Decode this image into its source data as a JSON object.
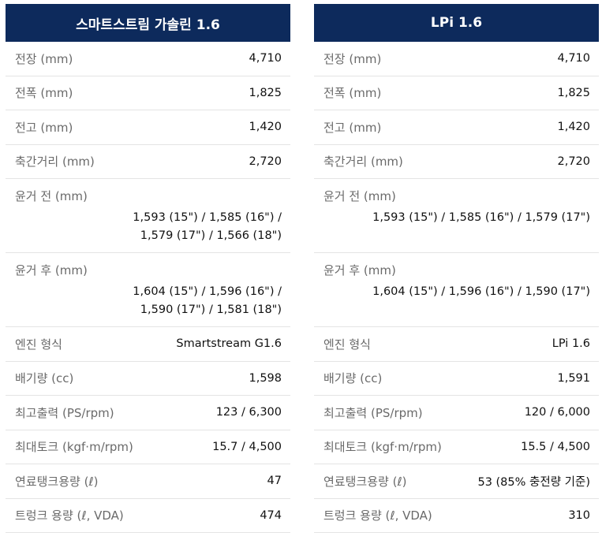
{
  "columns": [
    {
      "title": "스마트스트림 가솔린 1.6",
      "rows": [
        {
          "label": "전장 (mm)",
          "value": "4,710"
        },
        {
          "label": "전폭 (mm)",
          "value": "1,825"
        },
        {
          "label": "전고 (mm)",
          "value": "1,420"
        },
        {
          "label": "축간거리 (mm)",
          "value": "2,720"
        },
        {
          "label": "윤거 전 (mm)",
          "lines": [
            "1,593 (15\") / 1,585 (16\") /",
            "1,579 (17\") / 1,566 (18\")"
          ]
        },
        {
          "label": "윤거 후 (mm)",
          "lines": [
            "1,604 (15\") / 1,596 (16\") /",
            "1,590 (17\") / 1,581 (18\")"
          ]
        },
        {
          "label": "엔진 형식",
          "value": "Smartstream G1.6"
        },
        {
          "label": "배기량 (cc)",
          "value": "1,598"
        },
        {
          "label": "최고출력 (PS/rpm)",
          "value": "123 / 6,300"
        },
        {
          "label": "최대토크 (kgf·m/rpm)",
          "value": "15.7 / 4,500"
        },
        {
          "label": "연료탱크용량 (ℓ)",
          "value": "47"
        },
        {
          "label": "트렁크 용량 (ℓ, VDA)",
          "value": "474"
        }
      ]
    },
    {
      "title": "LPi 1.6",
      "rows": [
        {
          "label": "전장 (mm)",
          "value": "4,710"
        },
        {
          "label": "전폭 (mm)",
          "value": "1,825"
        },
        {
          "label": "전고 (mm)",
          "value": "1,420"
        },
        {
          "label": "축간거리 (mm)",
          "value": "2,720"
        },
        {
          "label": "윤거 전 (mm)",
          "lines": [
            "1,593 (15\") / 1,585 (16\") / 1,579 (17\")"
          ]
        },
        {
          "label": "윤거 후 (mm)",
          "lines": [
            "1,604 (15\") / 1,596 (16\") / 1,590 (17\")"
          ]
        },
        {
          "label": "엔진 형식",
          "value": "LPi 1.6"
        },
        {
          "label": "배기량 (cc)",
          "value": "1,591"
        },
        {
          "label": "최고출력 (PS/rpm)",
          "value": "120 / 6,000"
        },
        {
          "label": "최대토크 (kgf·m/rpm)",
          "value": "15.5 / 4,500"
        },
        {
          "label": "연료탱크용량 (ℓ)",
          "value": "53 (85% 충전량 기준)"
        },
        {
          "label": "트렁크 용량 (ℓ, VDA)",
          "value": "310"
        }
      ]
    }
  ]
}
